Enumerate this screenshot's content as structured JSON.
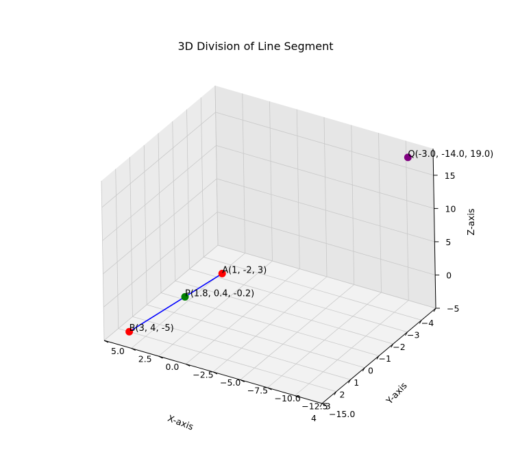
{
  "chart_data": {
    "type": "scatter",
    "title": "3D Division of Line Segment",
    "xlabel": "X-axis",
    "ylabel": "Y-axis",
    "zlabel": "Z-axis",
    "xlim": [
      -4,
      4
    ],
    "ylim": [
      -15,
      5
    ],
    "zlim": [
      -5,
      19
    ],
    "x_ticks": [
      "−4",
      "−3",
      "−2",
      "−1",
      "0",
      "1",
      "2",
      "3",
      "4"
    ],
    "y_ticks": [
      "−15.0",
      "−12.5",
      "−10.0",
      "−7.5",
      "−5.0",
      "−2.5",
      "0.0",
      "2.5",
      "5.0"
    ],
    "z_ticks": [
      "−5",
      "0",
      "5",
      "10",
      "15"
    ],
    "grid": true,
    "segment": {
      "from": "A",
      "to": "B",
      "color": "#0000ff"
    },
    "points": [
      {
        "id": "A",
        "label": "A(1, -2, 3)",
        "x": 1,
        "y": -2,
        "z": 3,
        "color": "#ff0000"
      },
      {
        "id": "B",
        "label": "B(3, 4, -5)",
        "x": 3,
        "y": 4,
        "z": -5,
        "color": "#ff0000"
      },
      {
        "id": "P",
        "label": "P(1.8, 0.4, -0.2)",
        "x": 1.8,
        "y": 0.4,
        "z": -0.2,
        "color": "#008000"
      },
      {
        "id": "Q",
        "label": "Q(-3.0, -14.0, 19.0)",
        "x": -3.0,
        "y": -14.0,
        "z": 19.0,
        "color": "#800080"
      }
    ]
  }
}
